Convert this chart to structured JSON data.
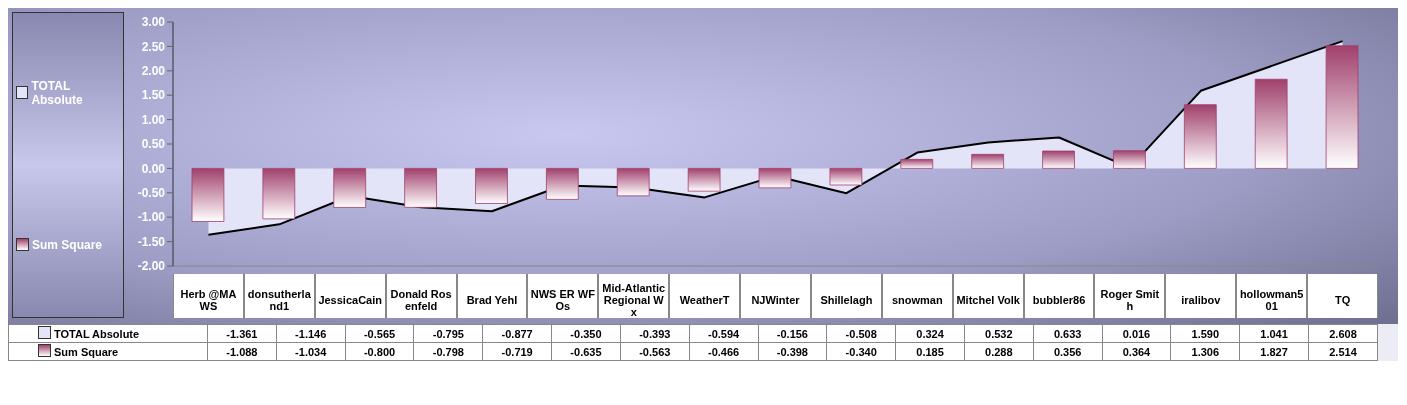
{
  "chart_data": {
    "type": "bar",
    "categories": [
      "Herb @MAWS",
      "donsutherland1",
      "JessicaCain",
      "Donald Rosenfeld",
      "Brad Yehl",
      "NWS ER WFOs",
      "Mid-Atlantic Regional Wx",
      "WeatherT",
      "NJWinter",
      "Shillelagh",
      "snowman",
      "Mitchel Volk",
      "bubbler86",
      "Roger Smith",
      "iralibov",
      "hollowman501",
      "TQ"
    ],
    "series": [
      {
        "name": "TOTAL Absolute",
        "type": "area",
        "color": "#e4e4f8",
        "values": [
          -1.361,
          -1.146,
          -0.565,
          -0.795,
          -0.877,
          -0.35,
          -0.393,
          -0.594,
          -0.156,
          -0.508,
          0.324,
          0.532,
          0.633,
          0.016,
          1.59,
          null,
          2.608
        ],
        "value_labels": [
          "-1.361",
          "-1.146",
          "-0.565",
          "-0.795",
          "-0.877",
          "-0.350",
          "-0.393",
          "-0.594",
          "-0.156",
          "-0.508",
          "0.324",
          "0.532",
          "0.633",
          "0.016",
          "1.590",
          "1.041",
          "2.608"
        ]
      },
      {
        "name": "Sum Square",
        "color": "#a0406c",
        "values": [
          -1.088,
          -1.034,
          -0.8,
          -0.798,
          -0.719,
          -0.635,
          -0.563,
          -0.466,
          -0.398,
          -0.34,
          0.185,
          0.288,
          0.356,
          0.364,
          1.306,
          1.827,
          2.514
        ],
        "value_labels": [
          "-1.088",
          "-1.034",
          "-0.800",
          "-0.798",
          "-0.719",
          "-0.635",
          "-0.563",
          "-0.466",
          "-0.398",
          "-0.340",
          "0.185",
          "0.288",
          "0.356",
          "0.364",
          "1.306",
          "1.827",
          "2.514"
        ]
      }
    ],
    "ylim": [
      -2,
      3
    ],
    "yticks": [
      {
        "value": -2,
        "label": "-2.00"
      },
      {
        "value": -1.5,
        "label": "-1.50"
      },
      {
        "value": -1,
        "label": "-1.00"
      },
      {
        "value": -0.5,
        "label": "-0.50"
      },
      {
        "value": 0,
        "label": "0.00"
      },
      {
        "value": 0.5,
        "label": "0.50"
      },
      {
        "value": 1,
        "label": "1.00"
      },
      {
        "value": 1.5,
        "label": "1.50"
      },
      {
        "value": 2,
        "label": "2.00"
      },
      {
        "value": 2.5,
        "label": "2.50"
      },
      {
        "value": 3,
        "label": "3.00"
      }
    ],
    "legend": "left"
  }
}
